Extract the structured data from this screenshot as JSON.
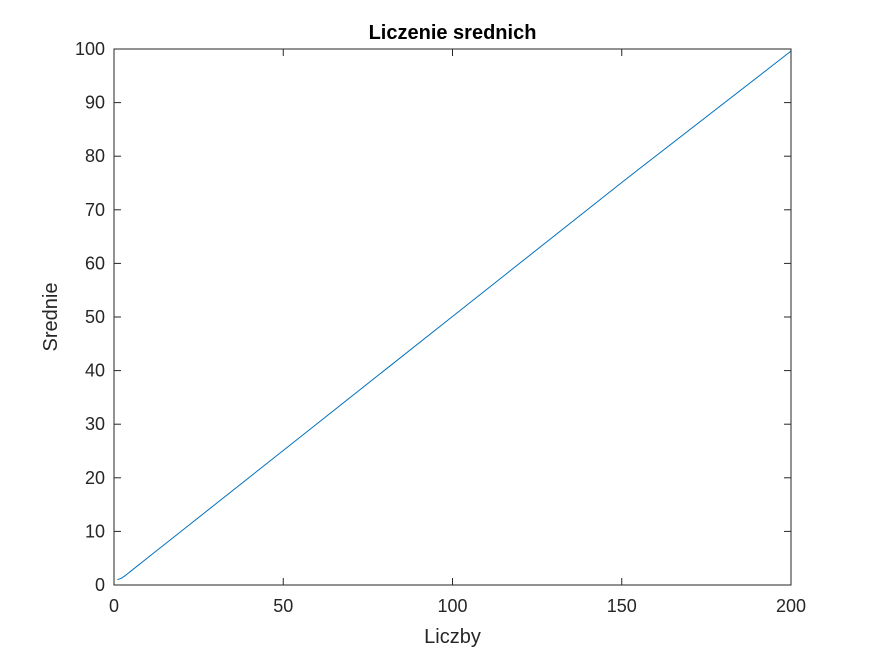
{
  "chart_data": {
    "type": "line",
    "title": "Liczenie srednich",
    "xlabel": "Liczby",
    "ylabel": "Srednie",
    "xlim": [
      0,
      200
    ],
    "ylim": [
      0,
      100
    ],
    "xticks": [
      0,
      50,
      100,
      150,
      200
    ],
    "yticks": [
      0,
      10,
      20,
      30,
      40,
      50,
      60,
      70,
      80,
      90,
      100
    ],
    "grid": false,
    "series": [
      {
        "color": "#0072BD",
        "x": [
          1,
          2,
          3,
          4,
          5,
          10,
          20,
          50,
          100,
          150,
          200
        ],
        "y": [
          1,
          1.2,
          1.6,
          2.1,
          2.6,
          5.1,
          10.1,
          25.1,
          50.1,
          75.1,
          99.6
        ]
      }
    ]
  }
}
